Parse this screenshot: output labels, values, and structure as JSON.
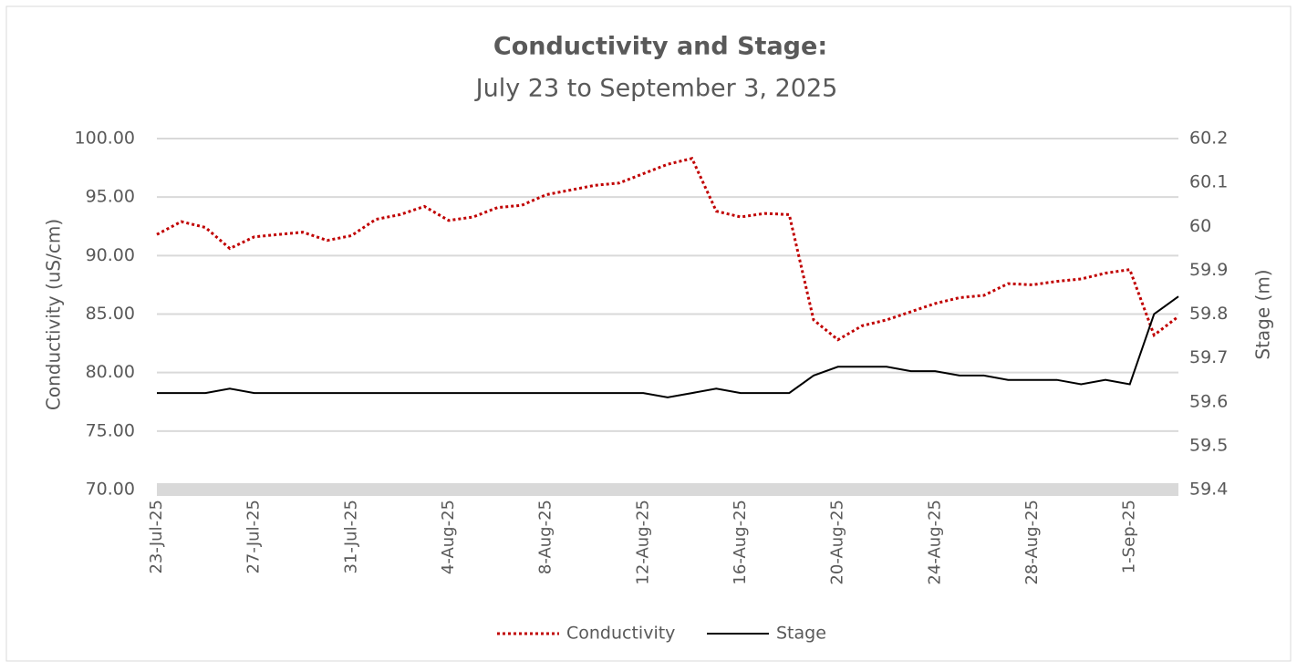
{
  "chart_data": {
    "type": "line",
    "title": "Conductivity and Stage:",
    "subtitle": "July 23 to September 3, 2025",
    "y_label": "Conductivity (uS/cm)",
    "y2_label": "Stage (m)",
    "x": [
      "23-Jul-25",
      "24-Jul-25",
      "25-Jul-25",
      "26-Jul-25",
      "27-Jul-25",
      "28-Jul-25",
      "29-Jul-25",
      "30-Jul-25",
      "31-Jul-25",
      "1-Aug-25",
      "2-Aug-25",
      "3-Aug-25",
      "4-Aug-25",
      "5-Aug-25",
      "6-Aug-25",
      "7-Aug-25",
      "8-Aug-25",
      "9-Aug-25",
      "10-Aug-25",
      "11-Aug-25",
      "12-Aug-25",
      "13-Aug-25",
      "14-Aug-25",
      "15-Aug-25",
      "16-Aug-25",
      "17-Aug-25",
      "18-Aug-25",
      "19-Aug-25",
      "20-Aug-25",
      "21-Aug-25",
      "22-Aug-25",
      "23-Aug-25",
      "24-Aug-25",
      "25-Aug-25",
      "26-Aug-25",
      "27-Aug-25",
      "28-Aug-25",
      "29-Aug-25",
      "30-Aug-25",
      "31-Aug-25",
      "1-Sep-25",
      "2-Sep-25",
      "3-Sep-25"
    ],
    "xticks": [
      "23-Jul-25",
      "27-Jul-25",
      "31-Jul-25",
      "4-Aug-25",
      "8-Aug-25",
      "12-Aug-25",
      "16-Aug-25",
      "20-Aug-25",
      "24-Aug-25",
      "28-Aug-25",
      "1-Sep-25"
    ],
    "series": [
      {
        "name": "Conductivity",
        "color": "#c00000",
        "dash": true,
        "values": [
          91.8,
          92.9,
          92.4,
          90.6,
          91.6,
          91.8,
          92.0,
          91.3,
          91.7,
          93.1,
          93.5,
          94.2,
          93.0,
          93.3,
          94.1,
          94.3,
          95.2,
          95.6,
          96.0,
          96.2,
          97.0,
          97.8,
          98.3,
          93.8,
          93.3,
          93.6,
          93.5,
          84.5,
          82.8,
          84.0,
          84.5,
          85.2,
          85.9,
          86.4,
          86.6,
          87.6,
          87.5,
          87.8,
          88.0,
          88.5,
          88.8,
          83.2,
          84.8
        ]
      },
      {
        "name": "Stage",
        "color": "#000000",
        "dash": false,
        "axis": "y2",
        "values": [
          59.62,
          59.62,
          59.62,
          59.63,
          59.62,
          59.62,
          59.62,
          59.62,
          59.62,
          59.62,
          59.62,
          59.62,
          59.62,
          59.62,
          59.62,
          59.62,
          59.62,
          59.62,
          59.62,
          59.62,
          59.62,
          59.61,
          59.62,
          59.63,
          59.62,
          59.62,
          59.62,
          59.66,
          59.68,
          59.68,
          59.68,
          59.67,
          59.67,
          59.66,
          59.66,
          59.65,
          59.65,
          59.65,
          59.64,
          59.65,
          59.64,
          59.8,
          59.84
        ]
      }
    ],
    "ylim": [
      70,
      100
    ],
    "yticks": [
      {
        "value": 70,
        "label": "70.00"
      },
      {
        "value": 75,
        "label": "75.00"
      },
      {
        "value": 80,
        "label": "80.00"
      },
      {
        "value": 85,
        "label": "85.00"
      },
      {
        "value": 90,
        "label": "90.00"
      },
      {
        "value": 95,
        "label": "95.00"
      },
      {
        "value": 100,
        "label": "100.00"
      }
    ],
    "y2lim": [
      59.4,
      60.2
    ],
    "y2ticks": [
      59.4,
      59.5,
      59.6,
      59.7,
      59.8,
      59.9,
      60,
      60.1,
      60.2
    ],
    "grid": true,
    "legend": "bottom"
  }
}
